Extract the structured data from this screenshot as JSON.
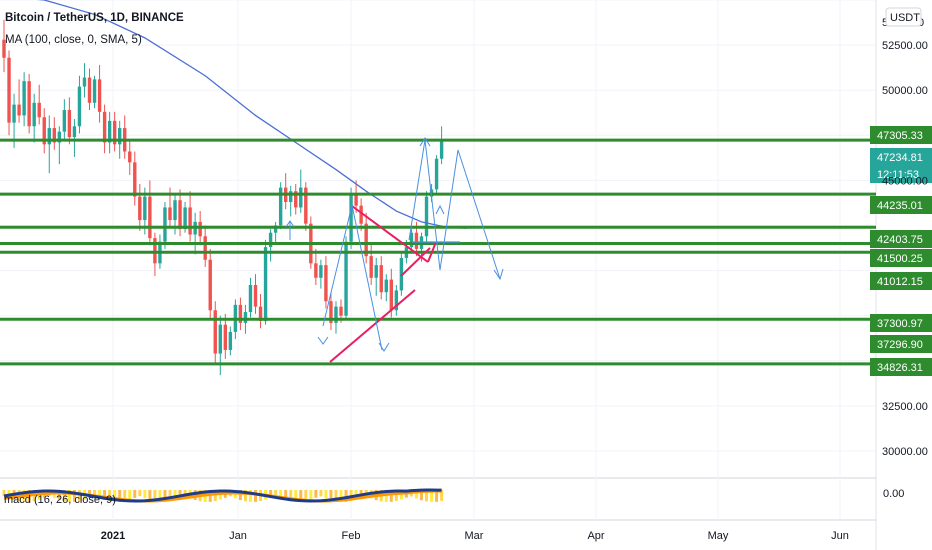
{
  "header": {
    "symbol_line": "Bitcoin / TetherUS, 1D, BINANCE",
    "ma_line": "MA (100, close, 0, SMA, 5)",
    "currency_badge": "USDT"
  },
  "macd_label": "macd (16, 26, close, 9)",
  "colors": {
    "up": "#26a69a",
    "down": "#ef5350",
    "level_line": "#2e8b2e",
    "ma": "#4a6fd6",
    "trend_pink": "#e91e63",
    "arrow_blue": "#4a90e2",
    "current_tag": "#26a69a",
    "macd_line": "#1f3c88",
    "macd_signal": "#ff9800"
  },
  "chart_data": {
    "type": "candlestick",
    "title": "Bitcoin / TetherUS, 1D, BINANCE",
    "indicator": "MA (100, close, 0, SMA, 5)",
    "y_range": [
      28500,
      55000
    ],
    "y_ticks": [
      {
        "value": 52500,
        "label": "52500.00"
      },
      {
        "value": 50000,
        "label": "50000.00"
      },
      {
        "value": 45000,
        "label": "45000.00"
      },
      {
        "value": 32500,
        "label": "32500.00"
      },
      {
        "value": 30000,
        "label": "30000.00"
      }
    ],
    "x_ticks": [
      "2021",
      "Jan",
      "Feb",
      "Mar",
      "Apr",
      "May",
      "Jun"
    ],
    "horizontal_levels": [
      47234.81,
      44235.01,
      42403.75,
      41500.25,
      41012.15,
      37300.97,
      34826.31
    ],
    "price_labels": [
      {
        "label": "47305.33",
        "style": "level"
      },
      {
        "label": "47234.81",
        "style": "current"
      },
      {
        "label": "12:11:53",
        "style": "current"
      },
      {
        "label": "44235.01",
        "style": "level"
      },
      {
        "label": "42403.75",
        "style": "level"
      },
      {
        "label": "41500.25",
        "style": "level"
      },
      {
        "label": "41012.15",
        "style": "level"
      },
      {
        "label": "37300.97",
        "style": "level"
      },
      {
        "label": "37296.90",
        "style": "level"
      },
      {
        "label": "34826.31",
        "style": "level"
      }
    ],
    "macd_axis_label": "0.00",
    "candles_ohlc": [
      [
        52800,
        53900,
        51000,
        51800
      ],
      [
        51800,
        52200,
        47500,
        48200
      ],
      [
        48200,
        49800,
        46800,
        49200
      ],
      [
        49200,
        50600,
        48200,
        48600
      ],
      [
        48600,
        51000,
        48000,
        50500
      ],
      [
        50500,
        50900,
        47600,
        48000
      ],
      [
        48000,
        49800,
        47100,
        49300
      ],
      [
        49300,
        50300,
        48100,
        48500
      ],
      [
        48500,
        49000,
        46500,
        47000
      ],
      [
        47000,
        48600,
        45400,
        47900
      ],
      [
        47900,
        48500,
        46700,
        47100
      ],
      [
        47100,
        48000,
        45900,
        47700
      ],
      [
        47700,
        49500,
        47200,
        48900
      ],
      [
        48900,
        49600,
        47000,
        47400
      ],
      [
        47400,
        48400,
        46300,
        48000
      ],
      [
        48000,
        50800,
        47600,
        50200
      ],
      [
        50200,
        51500,
        49600,
        50700
      ],
      [
        50700,
        51200,
        48900,
        49300
      ],
      [
        49300,
        50800,
        49000,
        50600
      ],
      [
        50600,
        51400,
        48200,
        48800
      ],
      [
        48800,
        49200,
        46500,
        47100
      ],
      [
        47100,
        48800,
        46500,
        48300
      ],
      [
        48300,
        48800,
        46600,
        47000
      ],
      [
        47000,
        48300,
        46200,
        47900
      ],
      [
        47900,
        48600,
        46200,
        46600
      ],
      [
        46600,
        47200,
        45300,
        46000
      ],
      [
        46000,
        46600,
        43600,
        44100
      ],
      [
        44100,
        44800,
        42200,
        42800
      ],
      [
        42800,
        44600,
        42000,
        44100
      ],
      [
        44100,
        45000,
        41400,
        41800
      ],
      [
        41800,
        42100,
        39700,
        40400
      ],
      [
        40400,
        42000,
        40100,
        41600
      ],
      [
        41600,
        43800,
        41200,
        43500
      ],
      [
        43500,
        44600,
        42400,
        42800
      ],
      [
        42800,
        44200,
        42000,
        43900
      ],
      [
        43900,
        44500,
        41900,
        42300
      ],
      [
        42300,
        43800,
        42100,
        43500
      ],
      [
        43500,
        44400,
        41600,
        42000
      ],
      [
        42000,
        43200,
        40900,
        42700
      ],
      [
        42700,
        43300,
        41400,
        41900
      ],
      [
        41900,
        42500,
        40200,
        40600
      ],
      [
        40600,
        41200,
        37300,
        37800
      ],
      [
        37800,
        38300,
        34800,
        35400
      ],
      [
        35400,
        37500,
        34200,
        37000
      ],
      [
        37000,
        37600,
        35100,
        35600
      ],
      [
        35600,
        36900,
        35300,
        36600
      ],
      [
        36600,
        38400,
        36200,
        38100
      ],
      [
        38100,
        38500,
        36700,
        37100
      ],
      [
        37100,
        38100,
        36500,
        37700
      ],
      [
        37700,
        39600,
        37400,
        39200
      ],
      [
        39200,
        39800,
        37600,
        38000
      ],
      [
        38000,
        38700,
        36800,
        37200
      ],
      [
        37200,
        41700,
        37000,
        41300
      ],
      [
        41300,
        42300,
        40500,
        42100
      ],
      [
        42100,
        42700,
        41500,
        42500
      ],
      [
        42500,
        44900,
        42300,
        44600
      ],
      [
        44600,
        45400,
        43400,
        43800
      ],
      [
        43800,
        44700,
        43000,
        44400
      ],
      [
        44400,
        44800,
        43100,
        43500
      ],
      [
        43500,
        45600,
        43200,
        44600
      ],
      [
        44600,
        44900,
        42200,
        42600
      ],
      [
        42600,
        43000,
        40100,
        40400
      ],
      [
        40400,
        41200,
        39200,
        39600
      ],
      [
        39600,
        40600,
        39000,
        40300
      ],
      [
        40300,
        40800,
        37900,
        38300
      ],
      [
        38300,
        38800,
        36700,
        37100
      ],
      [
        37100,
        38300,
        36500,
        38000
      ],
      [
        38000,
        38400,
        37100,
        37500
      ],
      [
        37500,
        41900,
        37300,
        41600
      ],
      [
        41600,
        44600,
        41200,
        44200
      ],
      [
        44200,
        45000,
        43200,
        43600
      ],
      [
        43600,
        44000,
        42200,
        42600
      ],
      [
        42600,
        43200,
        40400,
        40800
      ],
      [
        40800,
        41500,
        39200,
        39600
      ],
      [
        39600,
        40700,
        38600,
        40300
      ],
      [
        40300,
        40800,
        38400,
        38800
      ],
      [
        38800,
        39800,
        38300,
        39500
      ],
      [
        39500,
        40100,
        37400,
        37800
      ],
      [
        37800,
        39200,
        37500,
        38900
      ],
      [
        38900,
        41000,
        38600,
        40700
      ],
      [
        40700,
        41700,
        40400,
        41300
      ],
      [
        41300,
        42300,
        41000,
        42100
      ],
      [
        42100,
        42700,
        40800,
        41200
      ],
      [
        41200,
        42100,
        40500,
        41900
      ],
      [
        41900,
        44400,
        41600,
        44100
      ],
      [
        44100,
        44800,
        43800,
        44500
      ],
      [
        44500,
        46400,
        44300,
        46200
      ],
      [
        46200,
        48000,
        45900,
        47234.81
      ]
    ],
    "ma100": [
      [
        0,
        55200
      ],
      [
        8,
        55000
      ],
      [
        18,
        54200
      ],
      [
        28,
        52900
      ],
      [
        40,
        50800
      ],
      [
        50,
        48600
      ],
      [
        58,
        47100
      ],
      [
        66,
        45600
      ],
      [
        72,
        44400
      ],
      [
        78,
        43300
      ],
      [
        83,
        42700
      ],
      [
        88,
        42400
      ],
      [
        92,
        42350
      ]
    ]
  }
}
